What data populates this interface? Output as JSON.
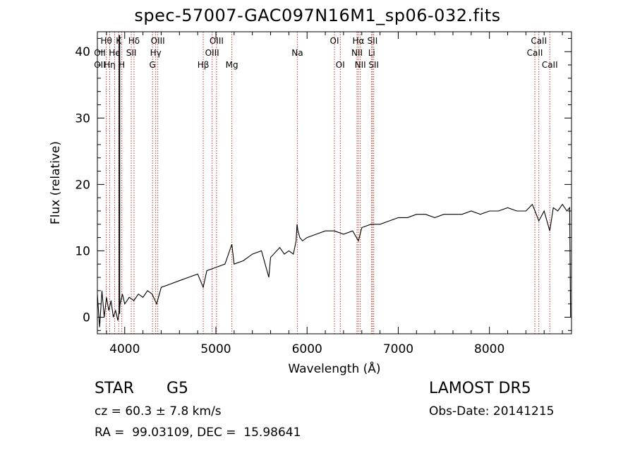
{
  "title": "spec-57007-GAC097N16M1_sp06-032.fits",
  "info": {
    "object_class": "STAR",
    "subclass": "G5",
    "survey": "LAMOST DR5",
    "redshift": "cz = 60.3 ± 7.8 km/s",
    "obs_date": "Obs-Date: 20141215",
    "coords": "RA =  99.03109, DEC =  15.98641"
  },
  "colors": {
    "spectrum": "#000000",
    "line_markers": "#c0392b",
    "axes": "#000000",
    "background": "#ffffff"
  },
  "chart_data": {
    "type": "line",
    "xlabel": "Wavelength (Å)",
    "ylabel": "Flux (relative)",
    "xlim": [
      3700,
      8900
    ],
    "ylim": [
      -2.5,
      43
    ],
    "xticks": [
      4000,
      5000,
      6000,
      7000,
      8000
    ],
    "yticks": [
      0,
      10,
      20,
      30,
      40
    ],
    "grid": false,
    "series": [
      {
        "x": [
          3700,
          3725,
          3750,
          3775,
          3800,
          3825,
          3850,
          3875,
          3900,
          3925,
          3950,
          3975,
          4000,
          4050,
          4100,
          4150,
          4200,
          4250,
          4300,
          4350,
          4400,
          4500,
          4600,
          4700,
          4800,
          4861,
          4900,
          5000,
          5100,
          5175,
          5200,
          5300,
          5400,
          5500,
          5580,
          5600,
          5700,
          5750,
          5800,
          5850,
          5880,
          5890,
          5900,
          5920,
          5950,
          6000,
          6100,
          6200,
          6300,
          6400,
          6500,
          6563,
          6600,
          6700,
          6800,
          6900,
          7000,
          7100,
          7200,
          7300,
          7400,
          7500,
          7600,
          7700,
          7800,
          7900,
          8000,
          8100,
          8200,
          8300,
          8400,
          8470,
          8500,
          8542,
          8600,
          8662,
          8700,
          8750,
          8800,
          8850,
          8880,
          8890
        ],
        "y": [
          3.5,
          -1.5,
          4,
          0,
          3,
          1,
          2.5,
          0,
          1,
          -0.5,
          2,
          3.5,
          2,
          3,
          2.5,
          3.5,
          3,
          4,
          3.5,
          2,
          4.5,
          5,
          5.5,
          6,
          6.5,
          4.5,
          7,
          7.5,
          8,
          11,
          8,
          8.5,
          9.5,
          10,
          6,
          9,
          10.5,
          9.5,
          10,
          9.5,
          11.5,
          14,
          13,
          12,
          11.5,
          12,
          12.5,
          13,
          13,
          12.5,
          13,
          11.5,
          13.5,
          14,
          14,
          14.5,
          15,
          15,
          15.5,
          15.5,
          15,
          15.5,
          15.5,
          15.5,
          16,
          15.5,
          16,
          16,
          16.5,
          16,
          16,
          17,
          16,
          14.5,
          16,
          13,
          16.5,
          16,
          17,
          16,
          16.5,
          0
        ]
      }
    ],
    "annotations": [
      {
        "label": "Hθ",
        "x": 3798,
        "row": 1
      },
      {
        "label": "OII",
        "x": 3727,
        "row": 2
      },
      {
        "label": "Hη",
        "x": 3835,
        "row": 3
      },
      {
        "label": "OII",
        "x": 3727,
        "row": 3
      },
      {
        "label": "K",
        "x": 3934,
        "row": 1
      },
      {
        "label": "He",
        "x": 3889,
        "row": 2
      },
      {
        "label": "H",
        "x": 3968,
        "row": 3
      },
      {
        "label": "Hδ",
        "x": 4102,
        "row": 1
      },
      {
        "label": "SII",
        "x": 4072,
        "row": 2
      },
      {
        "label": "OIII",
        "x": 4363,
        "row": 1
      },
      {
        "label": "Hγ",
        "x": 4340,
        "row": 2
      },
      {
        "label": "G",
        "x": 4305,
        "row": 3
      },
      {
        "label": "Hβ",
        "x": 4861,
        "row": 3
      },
      {
        "label": "OIII",
        "x": 5007,
        "row": 1
      },
      {
        "label": "OIII",
        "x": 4959,
        "row": 2
      },
      {
        "label": "Mg",
        "x": 5175,
        "row": 3
      },
      {
        "label": "Na",
        "x": 5893,
        "row": 2
      },
      {
        "label": "OI",
        "x": 6300,
        "row": 1
      },
      {
        "label": "OI",
        "x": 6364,
        "row": 3
      },
      {
        "label": "Hα",
        "x": 6563,
        "row": 1
      },
      {
        "label": "NII",
        "x": 6548,
        "row": 2
      },
      {
        "label": "NII",
        "x": 6584,
        "row": 3
      },
      {
        "label": "SII",
        "x": 6717,
        "row": 1
      },
      {
        "label": "Li",
        "x": 6708,
        "row": 2
      },
      {
        "label": "SII",
        "x": 6731,
        "row": 3
      },
      {
        "label": "CaII",
        "x": 8542,
        "row": 1
      },
      {
        "label": "CaII",
        "x": 8498,
        "row": 2
      },
      {
        "label": "CaII",
        "x": 8662,
        "row": 3
      }
    ],
    "absorption_lines": [
      3798,
      3835,
      3889,
      3934,
      3968,
      4072,
      4102,
      4305,
      4340,
      4363,
      4861,
      4959,
      5007,
      5175,
      5893,
      6300,
      6364,
      6548,
      6563,
      6584,
      6708,
      6717,
      6731,
      8498,
      8542,
      8662
    ]
  }
}
